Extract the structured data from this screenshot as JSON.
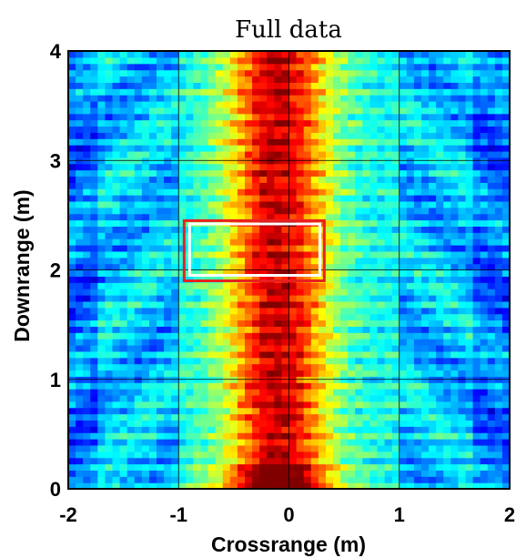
{
  "chart_data": {
    "type": "heatmap",
    "title": "Full data",
    "xlabel": "Crossrange (m)",
    "ylabel": "Downrange (m)",
    "xlim": [
      -2,
      2
    ],
    "ylim": [
      0,
      4
    ],
    "x_ticks": [
      -2,
      -1,
      0,
      1,
      2
    ],
    "y_ticks": [
      0,
      1,
      2,
      3,
      4
    ],
    "x_tick_labels": [
      "-2",
      "-1",
      "0",
      "1",
      "2"
    ],
    "y_tick_labels": [
      "0",
      "1",
      "2",
      "3",
      "4"
    ],
    "grid": true,
    "colormap": "jet",
    "description_of_field": "high intensity vertical band centered near crossrange -0.1 m spanning full downrange; strongest response near downrange 0.1 m",
    "peak_band_center_x": -0.1,
    "peak_band_halfwidth": 0.45,
    "regions": [
      {
        "name": "red-box",
        "color": "#e8201f",
        "x_range": [
          -0.95,
          0.32
        ],
        "y_range": [
          1.9,
          2.45
        ]
      },
      {
        "name": "white-box",
        "color": "#ffffff",
        "x_range": [
          -0.9,
          0.28
        ],
        "y_range": [
          1.95,
          2.42
        ]
      }
    ]
  }
}
